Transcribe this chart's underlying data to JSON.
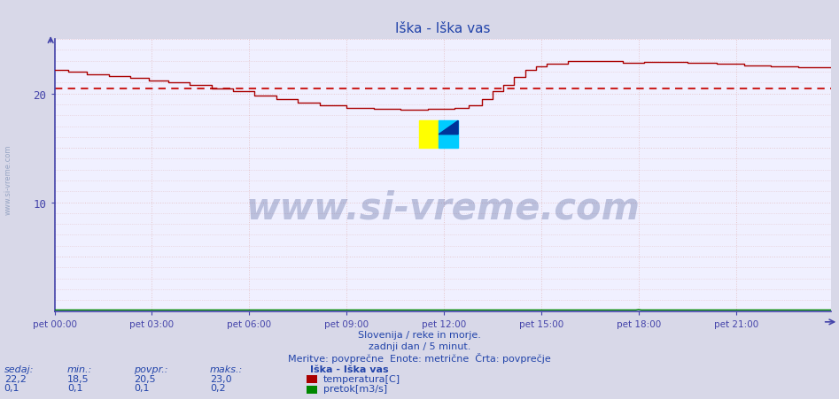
{
  "title": "Iška - Iška vas",
  "bg_color": "#d8d8e8",
  "plot_bg_color": "#f0f0ff",
  "grid_color": "#ddaaaa",
  "grid_style": ":",
  "avg_line_value": 20.5,
  "avg_line_color": "#cc2222",
  "avg_line_style": ":",
  "temp_color": "#aa0000",
  "flow_color": "#008800",
  "axis_color": "#4444aa",
  "text_color": "#2244aa",
  "ylim": [
    0,
    25
  ],
  "xlim_max": 287,
  "xlabel_ticks": [
    "pet 00:00",
    "pet 03:00",
    "pet 06:00",
    "pet 09:00",
    "pet 12:00",
    "pet 15:00",
    "pet 18:00",
    "pet 21:00"
  ],
  "xlabel_tick_positions": [
    0,
    36,
    72,
    108,
    144,
    180,
    216,
    252
  ],
  "total_points": 288,
  "subtitle1": "Slovenija / reke in morje.",
  "subtitle2": "zadnji dan / 5 minut.",
  "subtitle3": "Meritve: povprečne  Enote: metrične  Črta: povprečje",
  "legend_title": "Iška - Iška vas",
  "stat_headers": [
    "sedaj:",
    "min.:",
    "povpr.:",
    "maks.:"
  ],
  "stat_temp": [
    "22,2",
    "18,5",
    "20,5",
    "23,0"
  ],
  "stat_flow": [
    "0,1",
    "0,1",
    "0,1",
    "0,2"
  ],
  "label_temp": "temperatura[C]",
  "label_flow": "pretok[m3/s]",
  "watermark_text": "www.si-vreme.com",
  "side_watermark": "www.si-vreme.com"
}
